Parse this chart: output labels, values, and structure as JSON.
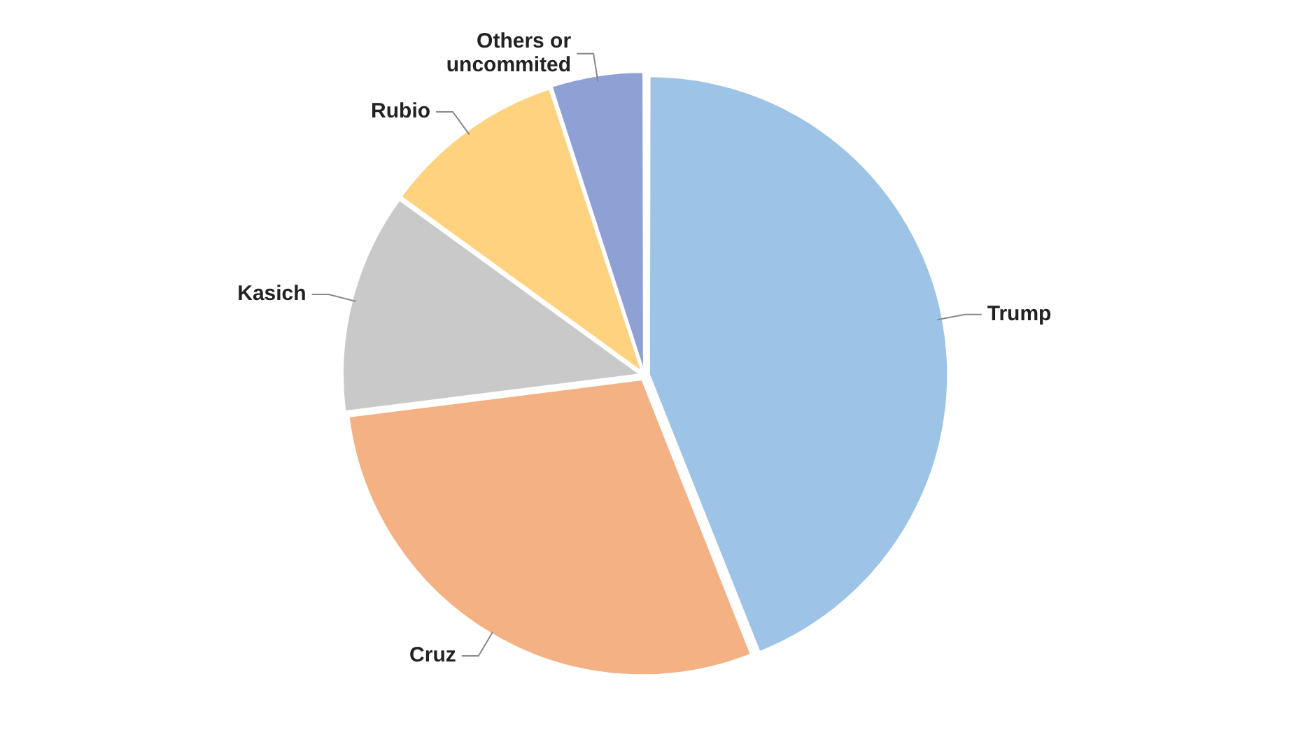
{
  "chart_data": {
    "type": "pie",
    "categories": [
      "Trump",
      "Cruz",
      "Kasich",
      "Rubio",
      "Others or uncommited"
    ],
    "values": [
      44,
      29,
      12,
      10,
      5
    ],
    "colors": [
      "#9dc3e6",
      "#f4b183",
      "#c9c9c9",
      "#ffd27f",
      "#8fa0d4"
    ],
    "legend": false
  }
}
